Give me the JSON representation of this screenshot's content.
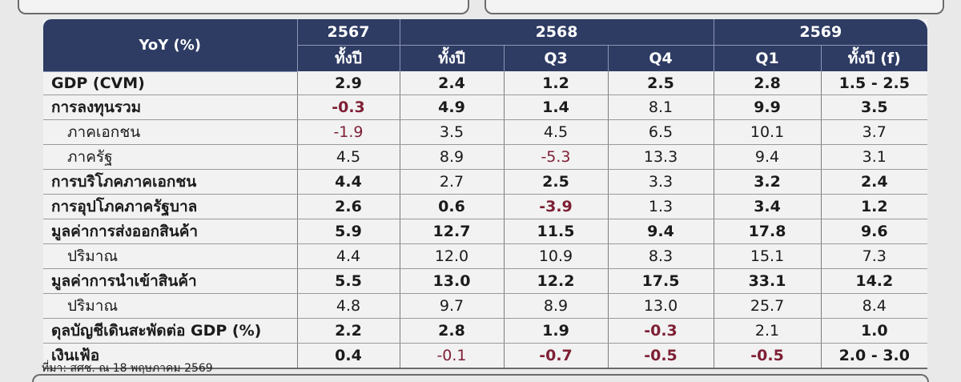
{
  "header": {
    "row_label": "YoY (%)",
    "years": [
      "2567",
      "2568",
      "2569"
    ],
    "periods": [
      "ทั้งปี",
      "ทั้งปี",
      "Q3",
      "Q4",
      "Q1",
      "ทั้งปี (f)"
    ]
  },
  "rows": [
    {
      "label": "GDP (CVM)",
      "values": [
        "2.9",
        "2.4",
        "1.2",
        "2.5",
        "2.8",
        "1.5 - 2.5"
      ]
    },
    {
      "label": "การลงทุนรวม",
      "values": [
        "-0.3",
        "4.9",
        "1.4",
        "8.1",
        "9.9",
        "3.5"
      ]
    },
    {
      "label": "ภาคเอกชน",
      "values": [
        "-1.9",
        "3.5",
        "4.5",
        "6.5",
        "10.1",
        "3.7"
      ]
    },
    {
      "label": "ภาครัฐ",
      "values": [
        "4.5",
        "8.9",
        "-5.3",
        "13.3",
        "9.4",
        "3.1"
      ]
    },
    {
      "label": "การบริโภคภาคเอกชน",
      "values": [
        "4.4",
        "2.7",
        "2.5",
        "3.3",
        "3.2",
        "2.4"
      ]
    },
    {
      "label": "การอุปโภคภาครัฐบาล",
      "values": [
        "2.6",
        "0.6",
        "-3.9",
        "1.3",
        "3.4",
        "1.2"
      ]
    },
    {
      "label": "มูลค่าการส่งออกสินค้า",
      "values": [
        "5.9",
        "12.7",
        "11.5",
        "9.4",
        "17.8",
        "9.6"
      ]
    },
    {
      "label": "ปริมาณ",
      "values": [
        "4.4",
        "12.0",
        "10.9",
        "8.3",
        "15.1",
        "7.3"
      ]
    },
    {
      "label": "มูลค่าการนำเข้าสินค้า",
      "values": [
        "5.5",
        "13.0",
        "12.2",
        "17.5",
        "33.1",
        "14.2"
      ]
    },
    {
      "label": "ปริมาณ",
      "values": [
        "4.8",
        "9.7",
        "8.9",
        "13.0",
        "25.7",
        "8.4"
      ]
    },
    {
      "label": "ดุลบัญชีเดินสะพัดต่อ GDP (%)",
      "values": [
        "2.2",
        "2.8",
        "1.9",
        "-0.3",
        "2.1",
        "1.0"
      ]
    },
    {
      "label": "เงินเฟ้อ",
      "values": [
        "0.4",
        "-0.1",
        "-0.7",
        "-0.5",
        "-0.5",
        "2.0 - 3.0"
      ]
    }
  ],
  "source": "ที่มา: สศช. ณ 18 พฤษภาคม 2569",
  "colors": {
    "header_bg": "#2e3b63",
    "negative": "#7e1f35"
  }
}
